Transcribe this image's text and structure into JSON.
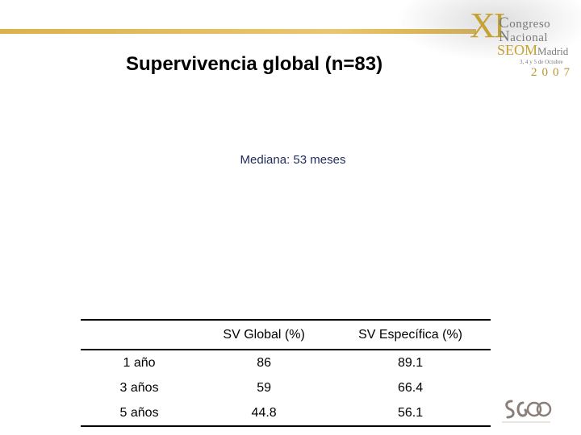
{
  "header": {
    "logo": {
      "numeral": "XI",
      "line1": "Congreso",
      "line2": "Nacional",
      "society": "SEOM",
      "city": "Madrid",
      "dates": "3, 4 y 5 de Octubre",
      "year": "2007"
    }
  },
  "slide": {
    "title": "Supervivencia global (n=83)",
    "median_label": "Mediana: 53 meses"
  },
  "table": {
    "headers": [
      "",
      "SV Global (%)",
      "SV Específica (%)"
    ],
    "rows": [
      [
        "1 año",
        "86",
        "89.1"
      ],
      [
        "3 años",
        "59",
        "66.4"
      ],
      [
        "5 años",
        "44.8",
        "56.1"
      ]
    ]
  },
  "footer": {
    "logo_text": "SEOM"
  },
  "colors": {
    "accent_gold": "#d9b24a",
    "logo_gray": "#7a7a7a",
    "median_text": "#1f2a5c"
  }
}
